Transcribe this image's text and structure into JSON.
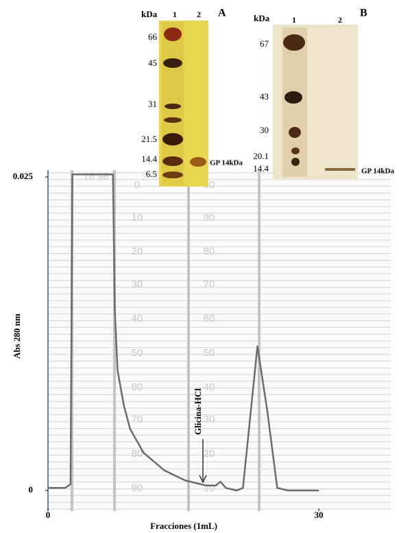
{
  "chart_data": {
    "type": "line",
    "y_label": "Abs 280 nm",
    "x_label": "Fracciones (1mL)",
    "x": [
      0,
      1.9,
      2.5,
      2.7,
      7.2,
      7.4,
      7.7,
      8.4,
      9.1,
      10.6,
      12.9,
      15.2,
      17.5,
      18.6,
      19.1,
      19.7,
      20.9,
      21.6,
      23.2,
      24.3,
      25.4,
      26.6,
      30
    ],
    "values": [
      0.0002,
      0.0002,
      0.0005,
      0.0252,
      0.0252,
      0.0145,
      0.0096,
      0.0068,
      0.0049,
      0.003,
      0.0016,
      0.0008,
      0.0004,
      0.0004,
      0.0007,
      0.0002,
      0,
      0.0002,
      0.0115,
      0.0063,
      0.0002,
      0,
      0
    ],
    "color": "#6b6b6b",
    "xlim": [
      0,
      30
    ],
    "xticks": [
      0,
      30
    ],
    "ylim": [
      0,
      0.025
    ],
    "yticks": [
      0,
      0.025
    ],
    "annotation": "Glicina-HCl",
    "paper_labels_left": [
      "0",
      "10",
      "20",
      "30",
      "40",
      "50",
      "60",
      "70",
      "80",
      "90"
    ],
    "paper_labels_right": [
      "00",
      "90",
      "80",
      "70",
      "60",
      "50",
      "40",
      "30",
      "20",
      "10"
    ],
    "paper_header": "18 98"
  },
  "gel_a": {
    "panel": "A",
    "unit": "kDa",
    "lanes": [
      "1",
      "2"
    ],
    "markers": [
      66,
      45,
      31,
      21.5,
      14.4,
      6.5
    ],
    "band_label": "GP 14kDa"
  },
  "gel_b": {
    "panel": "B",
    "unit": "kDa",
    "lanes": [
      "1",
      "2"
    ],
    "markers": [
      67,
      43,
      30,
      20.1,
      14.4
    ],
    "band_label": "GP 14kDa"
  }
}
